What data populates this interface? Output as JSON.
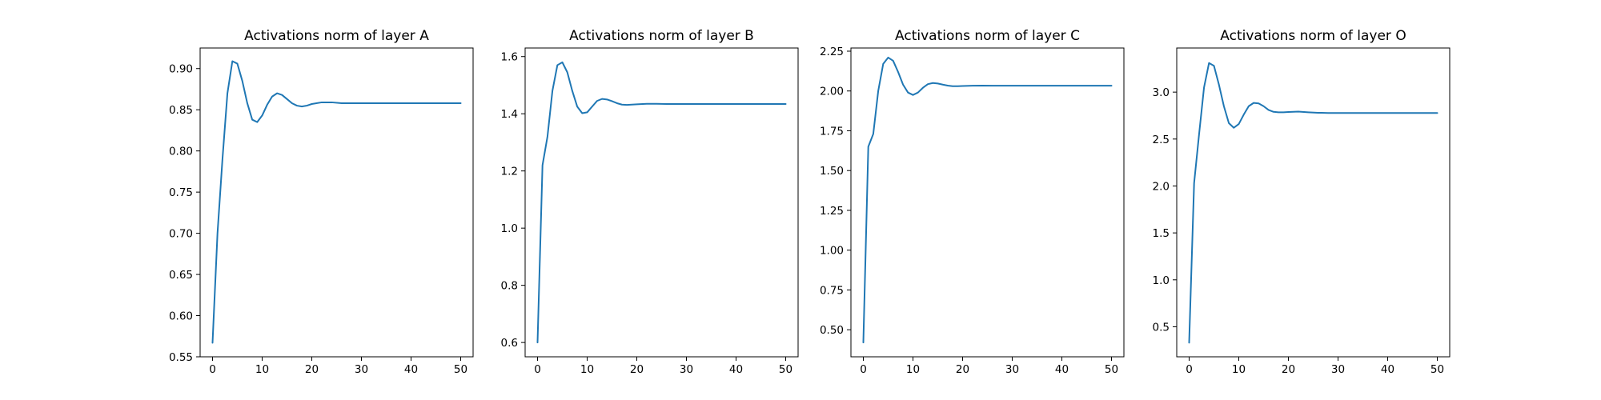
{
  "figure": {
    "background": "#ffffff",
    "line_color": "#1f77b4"
  },
  "chart_data": [
    {
      "type": "line",
      "title": "Activations norm of layer A",
      "xlabel": "",
      "ylabel": "",
      "xlim": [
        -2.5,
        52.5
      ],
      "ylim": [
        0.55,
        0.925
      ],
      "xticks": [
        0,
        10,
        20,
        30,
        40,
        50
      ],
      "yticks": [
        0.55,
        0.6,
        0.65,
        0.7,
        0.75,
        0.8,
        0.85,
        0.9
      ],
      "ytick_labels": [
        "0.55",
        "0.60",
        "0.65",
        "0.70",
        "0.75",
        "0.80",
        "0.85",
        "0.90"
      ],
      "grid": false,
      "series": [
        {
          "x": [
            0,
            1,
            2,
            3,
            4,
            5,
            6,
            7,
            8,
            9,
            10,
            11,
            12,
            13,
            14,
            15,
            16,
            17,
            18,
            19,
            20,
            22,
            24,
            26,
            28,
            30,
            35,
            40,
            45,
            50
          ],
          "y": [
            0.567,
            0.7,
            0.79,
            0.87,
            0.909,
            0.906,
            0.885,
            0.858,
            0.838,
            0.835,
            0.843,
            0.856,
            0.866,
            0.87,
            0.868,
            0.863,
            0.858,
            0.855,
            0.854,
            0.855,
            0.857,
            0.859,
            0.859,
            0.858,
            0.858,
            0.858,
            0.858,
            0.858,
            0.858,
            0.858
          ]
        }
      ]
    },
    {
      "type": "line",
      "title": "Activations norm of layer B",
      "xlabel": "",
      "ylabel": "",
      "xlim": [
        -2.5,
        52.5
      ],
      "ylim": [
        0.55,
        1.63
      ],
      "xticks": [
        0,
        10,
        20,
        30,
        40,
        50
      ],
      "yticks": [
        0.6,
        0.8,
        1.0,
        1.2,
        1.4,
        1.6
      ],
      "ytick_labels": [
        "0.6",
        "0.8",
        "1.0",
        "1.2",
        "1.4",
        "1.6"
      ],
      "grid": false,
      "series": [
        {
          "x": [
            0,
            1,
            2,
            3,
            4,
            5,
            6,
            7,
            8,
            9,
            10,
            11,
            12,
            13,
            14,
            15,
            16,
            17,
            18,
            19,
            20,
            22,
            24,
            26,
            28,
            30,
            35,
            40,
            45,
            50
          ],
          "y": [
            0.6,
            1.22,
            1.32,
            1.48,
            1.57,
            1.58,
            1.545,
            1.48,
            1.425,
            1.402,
            1.405,
            1.425,
            1.445,
            1.452,
            1.45,
            1.444,
            1.437,
            1.432,
            1.431,
            1.432,
            1.433,
            1.435,
            1.435,
            1.434,
            1.434,
            1.434,
            1.434,
            1.434,
            1.434,
            1.434
          ]
        }
      ]
    },
    {
      "type": "line",
      "title": "Activations norm of layer C",
      "xlabel": "",
      "ylabel": "",
      "xlim": [
        -2.5,
        52.5
      ],
      "ylim": [
        0.33,
        2.27
      ],
      "xticks": [
        0,
        10,
        20,
        30,
        40,
        50
      ],
      "yticks": [
        0.5,
        0.75,
        1.0,
        1.25,
        1.5,
        1.75,
        2.0,
        2.25
      ],
      "ytick_labels": [
        "0.50",
        "0.75",
        "1.00",
        "1.25",
        "1.50",
        "1.75",
        "2.00",
        "2.25"
      ],
      "grid": false,
      "series": [
        {
          "x": [
            0,
            1,
            2,
            3,
            4,
            5,
            6,
            7,
            8,
            9,
            10,
            11,
            12,
            13,
            14,
            15,
            16,
            17,
            18,
            19,
            20,
            22,
            24,
            26,
            28,
            30,
            35,
            40,
            45,
            50
          ],
          "y": [
            0.42,
            1.65,
            1.73,
            2.0,
            2.17,
            2.21,
            2.19,
            2.12,
            2.04,
            1.99,
            1.975,
            1.99,
            2.02,
            2.043,
            2.05,
            2.047,
            2.04,
            2.034,
            2.03,
            2.03,
            2.031,
            2.033,
            2.034,
            2.033,
            2.033,
            2.033,
            2.033,
            2.033,
            2.033,
            2.033
          ]
        }
      ]
    },
    {
      "type": "line",
      "title": "Activations norm of layer O",
      "xlabel": "",
      "ylabel": "",
      "xlim": [
        -2.5,
        52.5
      ],
      "ylim": [
        0.18,
        3.47
      ],
      "xticks": [
        0,
        10,
        20,
        30,
        40,
        50
      ],
      "yticks": [
        0.5,
        1.0,
        1.5,
        2.0,
        2.5,
        3.0
      ],
      "ytick_labels": [
        "0.5",
        "1.0",
        "1.5",
        "2.0",
        "2.5",
        "3.0"
      ],
      "grid": false,
      "series": [
        {
          "x": [
            0,
            1,
            2,
            3,
            4,
            5,
            6,
            7,
            8,
            9,
            10,
            11,
            12,
            13,
            14,
            15,
            16,
            17,
            18,
            19,
            20,
            22,
            24,
            26,
            28,
            30,
            35,
            40,
            45,
            50
          ],
          "y": [
            0.33,
            2.03,
            2.55,
            3.05,
            3.31,
            3.28,
            3.08,
            2.85,
            2.67,
            2.62,
            2.66,
            2.76,
            2.85,
            2.885,
            2.88,
            2.85,
            2.81,
            2.79,
            2.785,
            2.785,
            2.788,
            2.792,
            2.785,
            2.78,
            2.778,
            2.778,
            2.778,
            2.778,
            2.778,
            2.778
          ]
        }
      ]
    }
  ]
}
